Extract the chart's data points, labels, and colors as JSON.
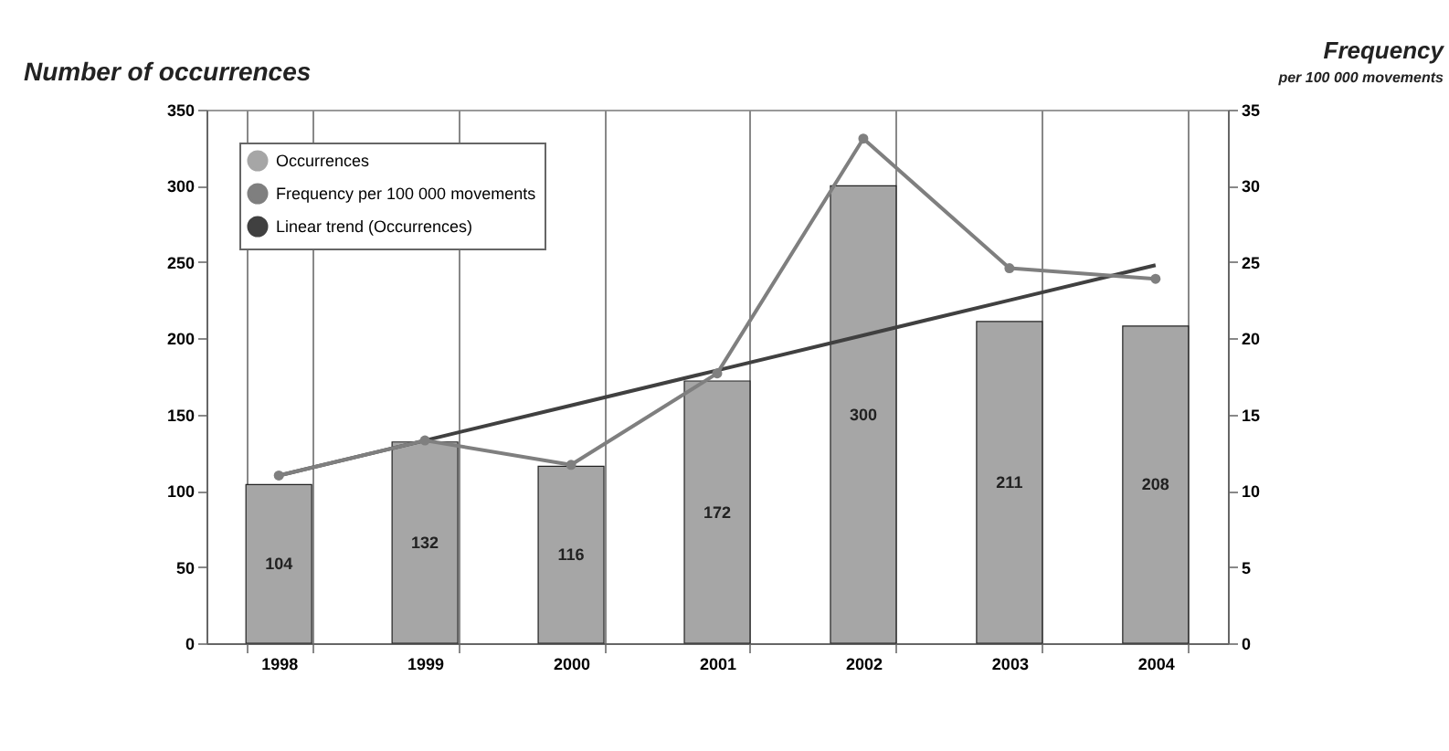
{
  "chart_data": {
    "type": "bar",
    "ylabel": "Number of occurrences",
    "y2label": "Frequency",
    "annotations": [
      "per 100 000 movements"
    ],
    "categories": [
      "1998",
      "1999",
      "2000",
      "2001",
      "2002",
      "2003",
      "2004"
    ],
    "series": [
      {
        "name": "Occurrences",
        "color": "#a6a6a6",
        "values": [
          104,
          132,
          116,
          172,
          300,
          211,
          208
        ],
        "value_labels": [
          "104",
          "132",
          "116",
          "172",
          "300",
          "211",
          "208"
        ]
      },
      {
        "name": "Frequency per 100 000 movements",
        "type": "line",
        "axis": "y2",
        "marker": "circle",
        "color": "#7f7f7f",
        "values": [
          11.0,
          13.3,
          11.7,
          17.7,
          33.1,
          24.6,
          23.9
        ]
      },
      {
        "name": "Linear trend (Occurrences)",
        "type": "line",
        "marker": "none",
        "color": "#404040",
        "values": [
          110,
          133,
          156,
          179,
          202,
          225,
          248
        ]
      }
    ],
    "ylim": [
      0,
      350
    ],
    "yticks": [
      0,
      50,
      100,
      150,
      200,
      250,
      300,
      350
    ],
    "y2lim": [
      0,
      35
    ],
    "y2ticks": [
      0,
      5,
      10,
      15,
      20,
      25,
      30,
      35
    ],
    "grid": "x",
    "legend": "top left"
  }
}
